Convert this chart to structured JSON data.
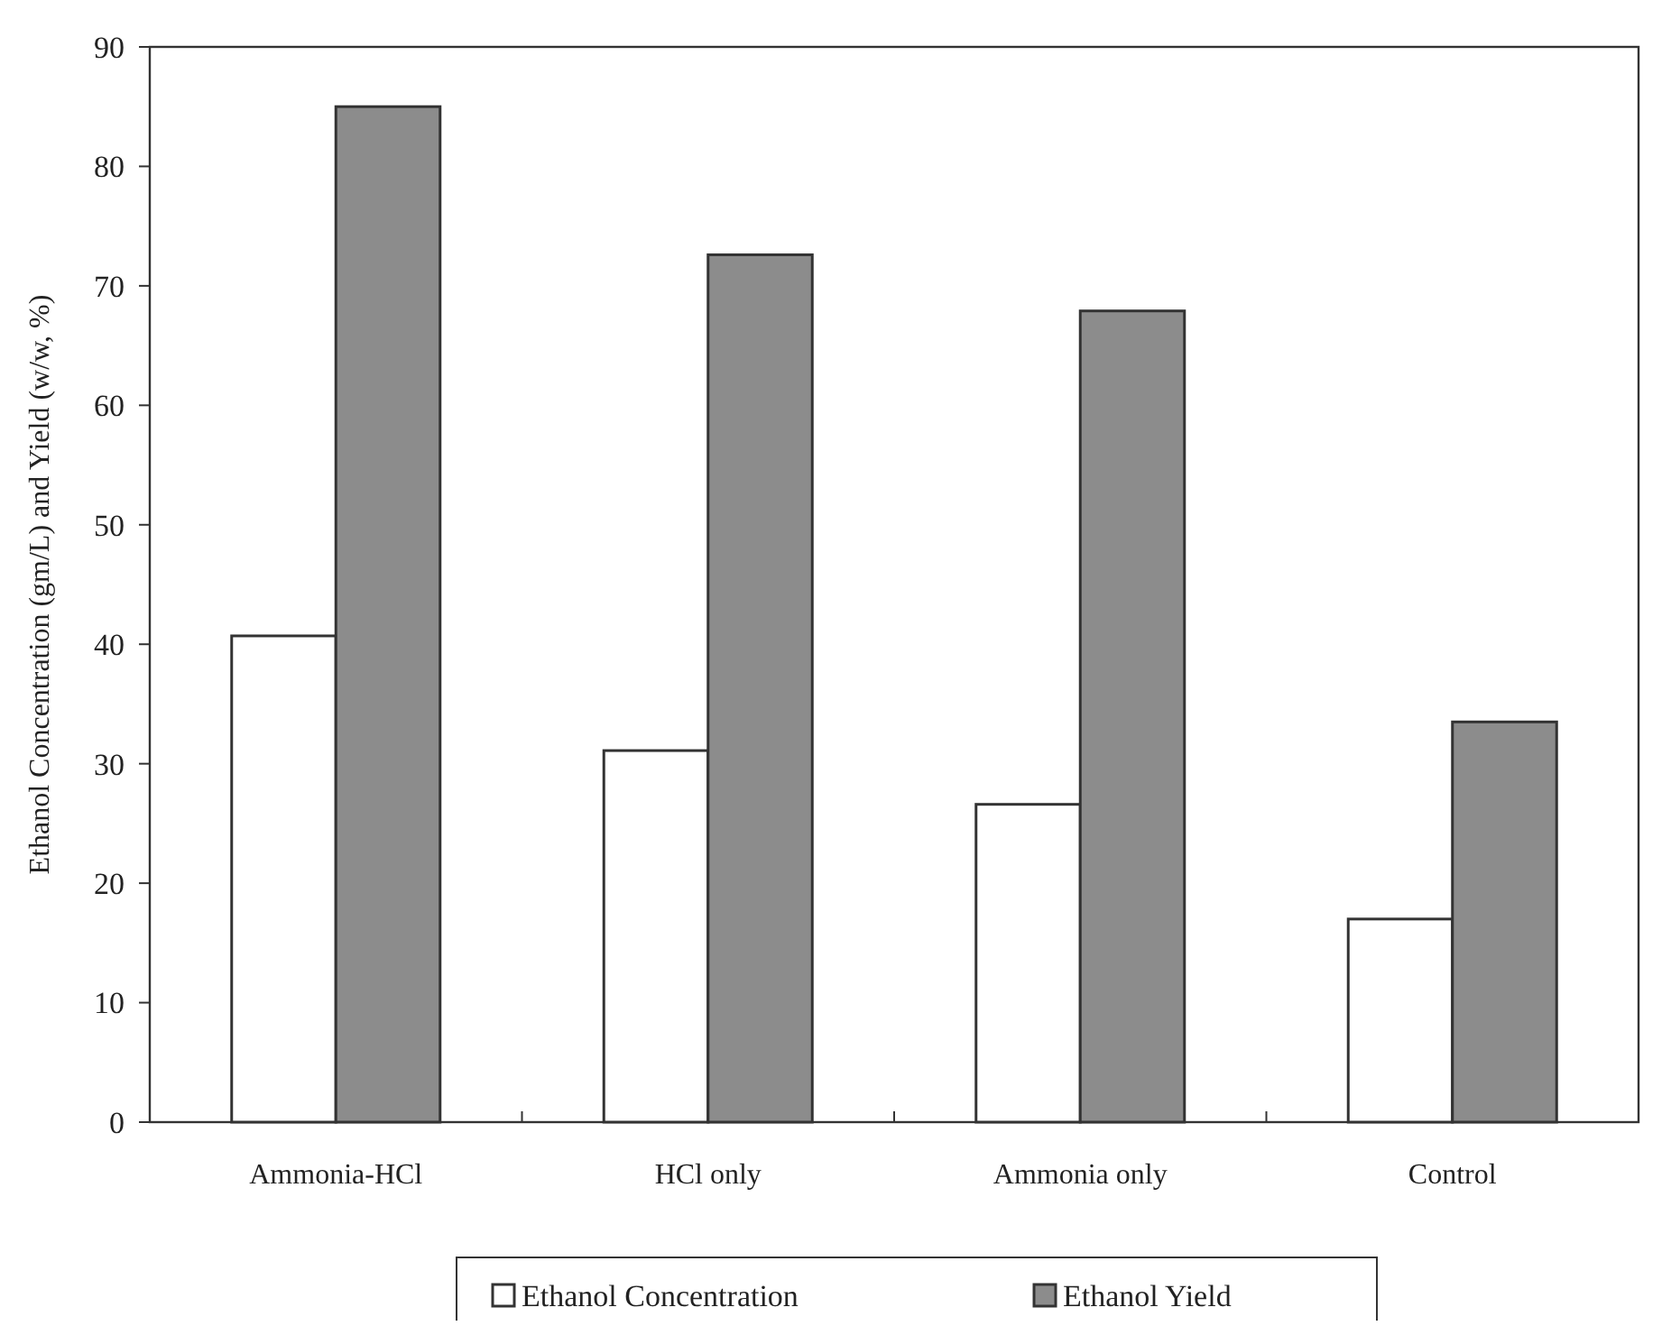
{
  "chart_data": {
    "type": "bar",
    "ylabel": "Ethanol Concentration (gm/L) and Yield (w/w, %)",
    "categories": [
      "Ammonia-HCl",
      "HCl only",
      "Ammonia only",
      "Control"
    ],
    "series": [
      {
        "name": "Ethanol Concentration",
        "color": "#ffffff",
        "values": [
          40.7,
          31.1,
          26.6,
          17.0
        ]
      },
      {
        "name": "Ethanol Yield",
        "color": "#8c8c8c",
        "values": [
          85.0,
          72.6,
          67.9,
          33.5
        ]
      }
    ],
    "ylim": [
      0,
      90
    ],
    "yticks": [
      0,
      10,
      20,
      30,
      40,
      50,
      60,
      70,
      80,
      90
    ],
    "grid": false,
    "legend": "bottom"
  }
}
